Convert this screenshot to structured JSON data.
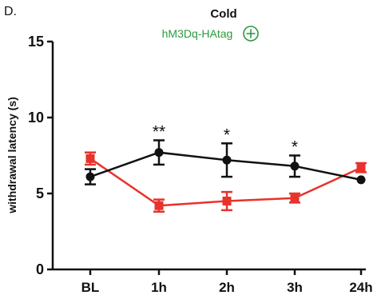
{
  "chart_data": {
    "type": "line",
    "panel_label": "D.",
    "title": "Cold",
    "subtitle": "hM3Dq-HAtag",
    "subtitle_marker": "circled-plus-icon",
    "ylabel": "withdrawal latency (s)",
    "xlabel": "",
    "ylim": [
      0,
      15
    ],
    "yticks": [
      0,
      5,
      10,
      15
    ],
    "categories": [
      "BL",
      "1h",
      "2h",
      "3h",
      "24h"
    ],
    "grid": false,
    "legend": "none",
    "series": [
      {
        "color": "#111111",
        "marker": "circle",
        "values": [
          6.1,
          7.7,
          7.2,
          6.8,
          5.9
        ],
        "errors": [
          0.5,
          0.8,
          1.1,
          0.7,
          0
        ]
      },
      {
        "color": "#e8322c",
        "marker": "square",
        "values": [
          7.3,
          4.2,
          4.5,
          4.7,
          6.7
        ],
        "errors": [
          0.4,
          0.4,
          0.6,
          0.3,
          0.3
        ]
      }
    ],
    "annotations": [
      {
        "category": "1h",
        "text": "**"
      },
      {
        "category": "2h",
        "text": "*"
      },
      {
        "category": "3h",
        "text": "*"
      }
    ]
  }
}
